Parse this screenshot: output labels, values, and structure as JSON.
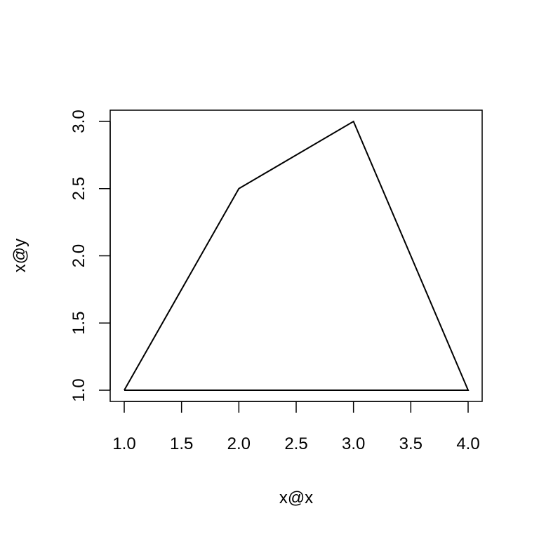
{
  "chart_data": {
    "type": "line",
    "title": "",
    "xlabel": "x@x",
    "ylabel": "x@y",
    "xlim": [
      1.0,
      4.0
    ],
    "ylim": [
      1.0,
      3.0
    ],
    "x_ticks": [
      "1.0",
      "1.5",
      "2.0",
      "2.5",
      "3.0",
      "3.5",
      "4.0"
    ],
    "y_ticks": [
      "1.0",
      "1.5",
      "2.0",
      "2.5",
      "3.0"
    ],
    "grid": false,
    "series": [
      {
        "x": [
          1,
          2,
          3,
          4,
          1
        ],
        "y": [
          1,
          2.5,
          3,
          1,
          1
        ],
        "color": "#000000"
      }
    ]
  }
}
